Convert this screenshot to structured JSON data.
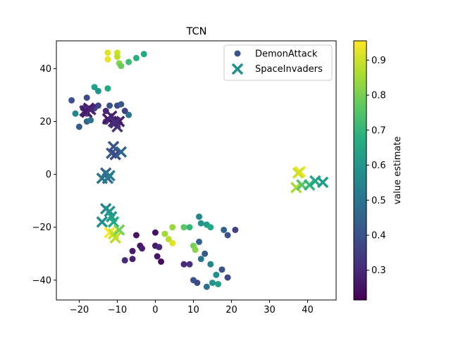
{
  "chart_data": {
    "type": "scatter",
    "title": "TCN",
    "xlabel": "",
    "ylabel": "",
    "xlim": [
      -26,
      47.5
    ],
    "ylim": [
      -47.5,
      50.5
    ],
    "x_ticks": [
      -20,
      -10,
      0,
      10,
      20,
      30,
      40
    ],
    "y_ticks": [
      -40,
      -20,
      0,
      20,
      40
    ],
    "x_tick_labels": [
      "−20",
      "−10",
      "0",
      "10",
      "20",
      "30",
      "40"
    ],
    "y_tick_labels": [
      "−40",
      "−20",
      "0",
      "20",
      "40"
    ],
    "grid": false,
    "legend_position": "top-right",
    "colorbar": {
      "label": "value estimate",
      "min": 0.215,
      "max": 0.955,
      "ticks": [
        0.3,
        0.4,
        0.5,
        0.6,
        0.7,
        0.8,
        0.9
      ],
      "tick_labels": [
        "0.3",
        "0.4",
        "0.5",
        "0.6",
        "0.7",
        "0.8",
        "0.9"
      ],
      "colormap": "viridis"
    },
    "series": [
      {
        "name": "DemonAttack",
        "marker": "circle",
        "points": [
          [
            -12.5,
            46,
            0.92
          ],
          [
            -10,
            46,
            0.9
          ],
          [
            -12.5,
            43.5,
            0.93
          ],
          [
            -10,
            44.5,
            0.88
          ],
          [
            -9.5,
            42,
            0.82
          ],
          [
            -9,
            41,
            0.78
          ],
          [
            -7,
            42.5,
            0.72
          ],
          [
            -5,
            44,
            0.68
          ],
          [
            -3,
            45.5,
            0.66
          ],
          [
            -16,
            33,
            0.64
          ],
          [
            -12.5,
            32.5,
            0.66
          ],
          [
            -15,
            31.5,
            0.6
          ],
          [
            -22,
            28,
            0.4
          ],
          [
            -18,
            29,
            0.38
          ],
          [
            -19,
            25,
            0.32
          ],
          [
            -21,
            23,
            0.55
          ],
          [
            -20,
            18,
            0.42
          ],
          [
            -18,
            20,
            0.45
          ],
          [
            -17,
            20.5,
            0.5
          ],
          [
            -16,
            25,
            0.35
          ],
          [
            -13,
            24,
            0.3
          ],
          [
            -12,
            26,
            0.4
          ],
          [
            -10,
            26,
            0.38
          ],
          [
            -9,
            26.5,
            0.42
          ],
          [
            -8,
            24,
            0.36
          ],
          [
            -7,
            22.5,
            0.5
          ],
          [
            -13,
            20,
            0.33
          ],
          [
            -18,
            23,
            0.38
          ],
          [
            -15,
            26,
            0.36
          ],
          [
            -5,
            -23,
            0.25
          ],
          [
            -6,
            -29,
            0.27
          ],
          [
            -6,
            -32,
            0.28
          ],
          [
            -8,
            -32.5,
            0.3
          ],
          [
            -4,
            -27,
            0.26
          ],
          [
            -3.5,
            -28,
            0.28
          ],
          [
            0,
            -22,
            0.25
          ],
          [
            0,
            -27,
            0.27
          ],
          [
            0.5,
            -31,
            0.26
          ],
          [
            1,
            -27.5,
            0.3
          ],
          [
            1.5,
            -33,
            0.24
          ],
          [
            2.5,
            -22.5,
            0.85
          ],
          [
            3.5,
            -24.5,
            0.88
          ],
          [
            4.5,
            -26,
            0.92
          ],
          [
            4.5,
            -20,
            0.84
          ],
          [
            7.5,
            -20,
            0.76
          ],
          [
            9,
            -20,
            0.7
          ],
          [
            10,
            -27,
            0.8
          ],
          [
            10.5,
            -28.5,
            0.82
          ],
          [
            11.5,
            -16,
            0.55
          ],
          [
            12,
            -18.5,
            0.6
          ],
          [
            13.5,
            -19,
            0.62
          ],
          [
            14.5,
            -20,
            0.66
          ],
          [
            7.5,
            -34,
            0.3
          ],
          [
            9,
            -34,
            0.32
          ],
          [
            10,
            -40,
            0.4
          ],
          [
            11,
            -41,
            0.38
          ],
          [
            11.5,
            -25.5,
            0.45
          ],
          [
            12,
            -32,
            0.5
          ],
          [
            13,
            -30,
            0.42
          ],
          [
            13.5,
            -42.5,
            0.48
          ],
          [
            14.5,
            -34,
            0.55
          ],
          [
            15,
            -41,
            0.6
          ],
          [
            16,
            -38,
            0.58
          ],
          [
            16.5,
            -41.5,
            0.62
          ],
          [
            17.5,
            -36,
            0.4
          ],
          [
            18,
            -21,
            0.45
          ],
          [
            19,
            -23,
            0.4
          ],
          [
            19,
            -39,
            0.38
          ],
          [
            21,
            -21,
            0.36
          ]
        ]
      },
      {
        "name": "SpaceInvaders",
        "marker": "x",
        "points": [
          [
            -18.5,
            24,
            0.28
          ],
          [
            -17.5,
            25,
            0.26
          ],
          [
            -18,
            23.5,
            0.27
          ],
          [
            -17,
            24.5,
            0.29
          ],
          [
            -12.5,
            21,
            0.26
          ],
          [
            -11.5,
            22,
            0.28
          ],
          [
            -11,
            20,
            0.3
          ],
          [
            -10,
            18,
            0.32
          ],
          [
            -9.5,
            20,
            0.27
          ],
          [
            -10.5,
            19.5,
            0.31
          ],
          [
            -11,
            10.5,
            0.4
          ],
          [
            -11.5,
            8,
            0.42
          ],
          [
            -10.5,
            7.5,
            0.38
          ],
          [
            -9,
            8.5,
            0.45
          ],
          [
            -13,
            0.5,
            0.45
          ],
          [
            -14,
            -1.5,
            0.5
          ],
          [
            -12.5,
            -1.5,
            0.48
          ],
          [
            -12,
            -0.5,
            0.52
          ],
          [
            -13,
            -13,
            0.55
          ],
          [
            -12,
            -14,
            0.6
          ],
          [
            -11.5,
            -16,
            0.62
          ],
          [
            -14,
            -18,
            0.58
          ],
          [
            -11,
            -18,
            0.66
          ],
          [
            -12,
            -22,
            0.95
          ],
          [
            -11,
            -22.5,
            0.9
          ],
          [
            -10.5,
            -24,
            0.88
          ],
          [
            -9.5,
            -21,
            0.8
          ],
          [
            38,
            1,
            0.94
          ],
          [
            37.5,
            0.5,
            0.9
          ],
          [
            37,
            -5,
            0.86
          ],
          [
            38.5,
            -4,
            0.76
          ],
          [
            40.5,
            -4,
            0.7
          ],
          [
            42,
            -2.5,
            0.66
          ],
          [
            44,
            -3,
            0.62
          ]
        ]
      }
    ]
  }
}
